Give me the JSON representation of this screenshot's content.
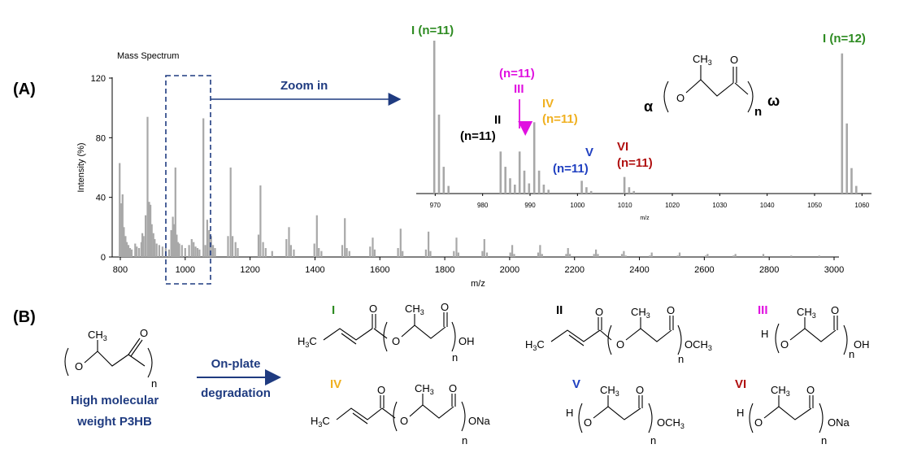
{
  "panel_a_label": "(A)",
  "panel_b_label": "(B)",
  "zoom_label": "Zoom in",
  "colors": {
    "I": "#2e8b22",
    "II": "#000000",
    "III": "#e010e0",
    "IV": "#f0b020",
    "V": "#1f3fc0",
    "VI": "#b01010",
    "arrow": "#1f3b80",
    "bar": "#a8a8a8"
  },
  "chart_data": [
    {
      "type": "bar",
      "title": "Mass Spectrum",
      "xlabel": "m/z",
      "ylabel": "Intensity (%)",
      "xlim": [
        790,
        3010
      ],
      "ylim": [
        0,
        120
      ],
      "xticks": [
        800,
        1000,
        1200,
        1400,
        1600,
        1800,
        2000,
        2200,
        2400,
        2600,
        2800,
        3000
      ],
      "yticks": [
        0,
        40,
        80,
        120
      ],
      "peaks": [
        [
          798,
          63
        ],
        [
          803,
          36
        ],
        [
          807,
          42
        ],
        [
          811,
          20
        ],
        [
          816,
          14
        ],
        [
          820,
          10
        ],
        [
          825,
          8
        ],
        [
          830,
          6
        ],
        [
          835,
          5
        ],
        [
          846,
          9
        ],
        [
          851,
          7
        ],
        [
          858,
          6
        ],
        [
          865,
          10
        ],
        [
          868,
          16
        ],
        [
          872,
          14
        ],
        [
          878,
          28
        ],
        [
          884,
          94
        ],
        [
          889,
          37
        ],
        [
          893,
          35
        ],
        [
          897,
          22
        ],
        [
          902,
          16
        ],
        [
          906,
          12
        ],
        [
          912,
          9
        ],
        [
          920,
          8
        ],
        [
          930,
          7
        ],
        [
          940,
          6
        ],
        [
          950,
          5
        ],
        [
          957,
          18
        ],
        [
          962,
          27
        ],
        [
          966,
          22
        ],
        [
          970,
          60
        ],
        [
          974,
          15
        ],
        [
          978,
          10
        ],
        [
          982,
          9
        ],
        [
          990,
          8
        ],
        [
          1000,
          6
        ],
        [
          1012,
          8
        ],
        [
          1020,
          12
        ],
        [
          1026,
          10
        ],
        [
          1032,
          7
        ],
        [
          1038,
          6
        ],
        [
          1044,
          5
        ],
        [
          1056,
          93
        ],
        [
          1062,
          8
        ],
        [
          1068,
          25
        ],
        [
          1074,
          18
        ],
        [
          1080,
          14
        ],
        [
          1086,
          8
        ],
        [
          1092,
          6
        ],
        [
          1132,
          14
        ],
        [
          1140,
          60
        ],
        [
          1146,
          14
        ],
        [
          1155,
          10
        ],
        [
          1162,
          6
        ],
        [
          1226,
          15
        ],
        [
          1232,
          48
        ],
        [
          1240,
          10
        ],
        [
          1248,
          6
        ],
        [
          1268,
          4
        ],
        [
          1312,
          12
        ],
        [
          1320,
          20
        ],
        [
          1326,
          8
        ],
        [
          1335,
          5
        ],
        [
          1398,
          9
        ],
        [
          1406,
          28
        ],
        [
          1412,
          6
        ],
        [
          1420,
          4
        ],
        [
          1484,
          8
        ],
        [
          1492,
          26
        ],
        [
          1498,
          6
        ],
        [
          1506,
          4
        ],
        [
          1570,
          7
        ],
        [
          1578,
          13
        ],
        [
          1584,
          5
        ],
        [
          1656,
          6
        ],
        [
          1664,
          19
        ],
        [
          1670,
          4
        ],
        [
          1742,
          5
        ],
        [
          1750,
          17
        ],
        [
          1756,
          4
        ],
        [
          1828,
          4
        ],
        [
          1836,
          13
        ],
        [
          1842,
          3
        ],
        [
          1916,
          4
        ],
        [
          1922,
          12
        ],
        [
          1930,
          3
        ],
        [
          2002,
          3
        ],
        [
          2008,
          8
        ],
        [
          2014,
          2
        ],
        [
          2088,
          3
        ],
        [
          2094,
          8
        ],
        [
          2100,
          2
        ],
        [
          2174,
          2
        ],
        [
          2180,
          6
        ],
        [
          2186,
          2
        ],
        [
          2260,
          2
        ],
        [
          2266,
          5
        ],
        [
          2272,
          2
        ],
        [
          2346,
          2
        ],
        [
          2352,
          4
        ],
        [
          2358,
          1
        ],
        [
          2432,
          1
        ],
        [
          2438,
          3
        ],
        [
          2518,
          1
        ],
        [
          2524,
          3
        ],
        [
          2604,
          1
        ],
        [
          2610,
          2
        ],
        [
          2690,
          1
        ],
        [
          2696,
          2
        ],
        [
          2782,
          2
        ],
        [
          2868,
          1
        ],
        [
          2954,
          1
        ]
      ]
    },
    {
      "type": "bar",
      "title": "",
      "xlabel": "m/z",
      "ylabel": "",
      "xlim": [
        966,
        1062
      ],
      "ylim": [
        0,
        120
      ],
      "xticks": [
        970,
        980,
        990,
        1000,
        1010,
        1020,
        1030,
        1040,
        1050,
        1060
      ],
      "peaks": [
        [
          969.8,
          120
        ],
        [
          970.8,
          62
        ],
        [
          971.8,
          21
        ],
        [
          972.8,
          6
        ],
        [
          983.8,
          33
        ],
        [
          984.8,
          21
        ],
        [
          985.8,
          12
        ],
        [
          986.8,
          7
        ],
        [
          987.8,
          33
        ],
        [
          988.8,
          18
        ],
        [
          989.8,
          8
        ],
        [
          990.9,
          56
        ],
        [
          991.9,
          18
        ],
        [
          992.9,
          7
        ],
        [
          993.9,
          3
        ],
        [
          1000.9,
          10
        ],
        [
          1001.9,
          5
        ],
        [
          1002.9,
          2
        ],
        [
          1009.9,
          13
        ],
        [
          1010.9,
          5
        ],
        [
          1011.9,
          2
        ],
        [
          1055.8,
          110
        ],
        [
          1056.8,
          55
        ],
        [
          1057.8,
          20
        ],
        [
          1058.8,
          6
        ]
      ],
      "annotations": [
        {
          "id": "I",
          "text": "I (n=11)"
        },
        {
          "id": "II",
          "roman": "II",
          "n": "(n=11)"
        },
        {
          "id": "III",
          "roman": "III",
          "n": "(n=11)"
        },
        {
          "id": "IV",
          "roman": "IV",
          "n": "(n=11)"
        },
        {
          "id": "V",
          "roman": "V",
          "n": "(n=11)"
        },
        {
          "id": "VI",
          "roman": "VI",
          "n": "(n=11)"
        },
        {
          "id": "I12",
          "text": "I (n=12)"
        }
      ]
    }
  ],
  "main_structure": {
    "alpha": "α",
    "omega": "ω",
    "group": "CH",
    "group_sub": "3",
    "O": "O",
    "n": "n"
  },
  "scheme": {
    "polymer_name_line1": "High molecular",
    "polymer_name_line2": "weight P3HB",
    "arrow_label_line1": "On-plate",
    "arrow_label_line2": "degradation",
    "labels": {
      "I": "I",
      "II": "II",
      "III": "III",
      "IV": "IV",
      "V": "V",
      "VI": "VI"
    },
    "end_groups": {
      "acid": "OH",
      "methyl_ester": "OCH",
      "sodium": "ONa",
      "h": "H",
      "h3c": "H",
      "h3c_sub": "3",
      "h3c_c": "C"
    }
  }
}
